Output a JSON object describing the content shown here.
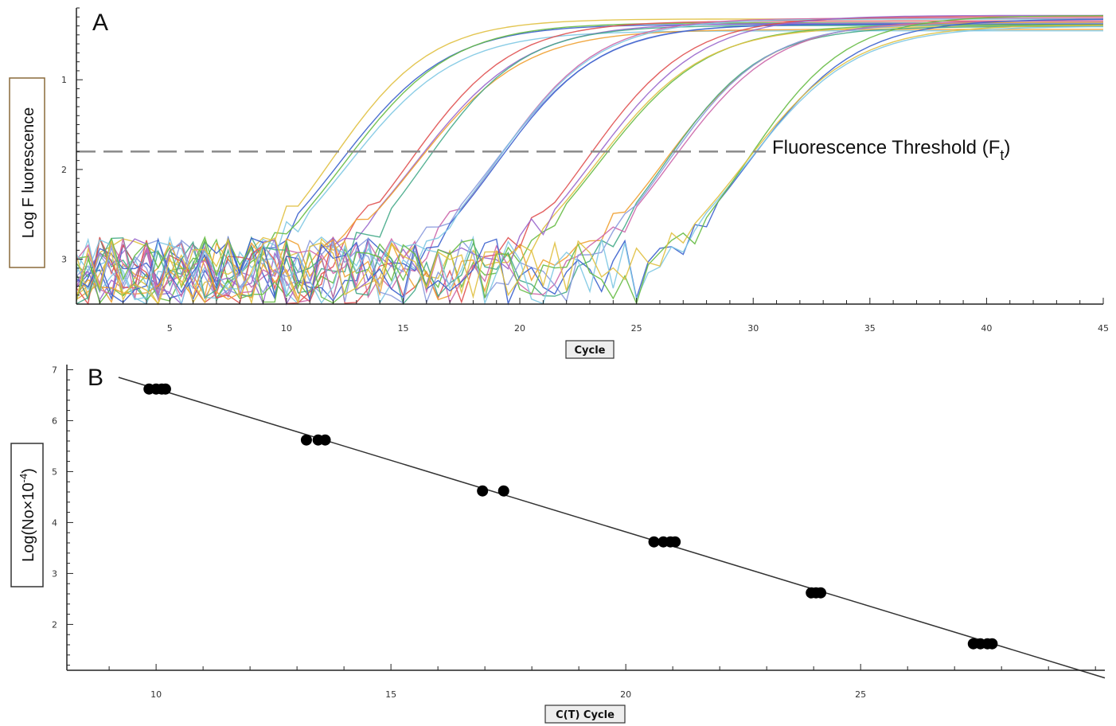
{
  "colors": {
    "axis": "#222222",
    "threshold": "#8a8a8a",
    "points": "#000000",
    "fit_line": "#333333",
    "curve_palette": [
      "#3a5fcd",
      "#7ec8e3",
      "#66bb44",
      "#e0c040",
      "#e05050",
      "#9966cc",
      "#f0a030",
      "#44aa88",
      "#cc66aa",
      "#8899dd"
    ]
  },
  "chart_data": [
    {
      "panel": "A",
      "type": "line",
      "xlabel": "Cycle",
      "ylabel": "Log F luorescence",
      "x_ticks": [
        5,
        10,
        15,
        20,
        25,
        30,
        35,
        40,
        45
      ],
      "y_ticks": [
        1,
        2,
        3
      ],
      "xlim": [
        1,
        45
      ],
      "ylim": [
        -3.5,
        -0.2
      ],
      "threshold": {
        "y": -1.8,
        "label": "Fluorescence Threshold (F",
        "label_sub": "t",
        "label_end": ")"
      },
      "series_groups": [
        {
          "ct": 10,
          "replicates": 4
        },
        {
          "ct": 13.5,
          "replicates": 4
        },
        {
          "ct": 17,
          "replicates": 4
        },
        {
          "ct": 20.8,
          "replicates": 4
        },
        {
          "ct": 24,
          "replicates": 4
        },
        {
          "ct": 27.6,
          "replicates": 4
        }
      ]
    },
    {
      "panel": "B",
      "type": "scatter",
      "xlabel": "C(T) Cycle",
      "ylabel": "Log(No×10",
      "ylabel_sup": "-4",
      "ylabel_end": ")",
      "x_ticks": [
        10,
        15,
        20,
        25
      ],
      "y_ticks": [
        2,
        3,
        4,
        5,
        6,
        7
      ],
      "xlim": [
        8.1,
        30.2
      ],
      "ylim": [
        1.1,
        7.1
      ],
      "points": [
        {
          "x": 9.85,
          "y": 6.62
        },
        {
          "x": 10.0,
          "y": 6.62
        },
        {
          "x": 10.12,
          "y": 6.62
        },
        {
          "x": 10.2,
          "y": 6.62
        },
        {
          "x": 13.2,
          "y": 5.62
        },
        {
          "x": 13.45,
          "y": 5.62
        },
        {
          "x": 13.6,
          "y": 5.62
        },
        {
          "x": 16.95,
          "y": 4.62
        },
        {
          "x": 17.4,
          "y": 4.62
        },
        {
          "x": 20.6,
          "y": 3.62
        },
        {
          "x": 20.8,
          "y": 3.62
        },
        {
          "x": 20.95,
          "y": 3.62
        },
        {
          "x": 21.05,
          "y": 3.62
        },
        {
          "x": 23.95,
          "y": 2.62
        },
        {
          "x": 24.05,
          "y": 2.62
        },
        {
          "x": 24.15,
          "y": 2.62
        },
        {
          "x": 27.4,
          "y": 1.62
        },
        {
          "x": 27.55,
          "y": 1.62
        },
        {
          "x": 27.7,
          "y": 1.62
        },
        {
          "x": 27.8,
          "y": 1.62
        }
      ],
      "fit": {
        "x1": 9.2,
        "y1": 6.85,
        "x2": 30.2,
        "y2": 0.95
      }
    }
  ]
}
